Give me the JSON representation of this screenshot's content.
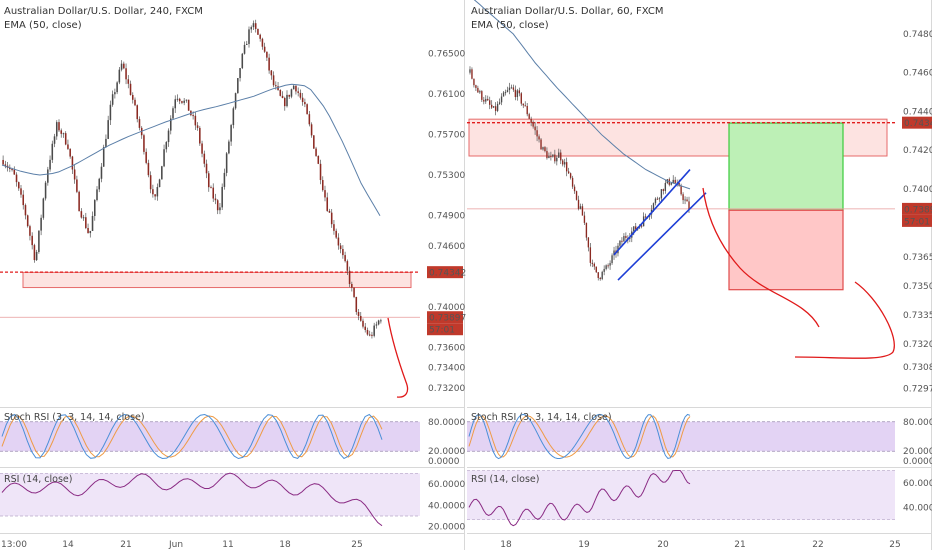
{
  "colors": {
    "up": "#4a4a4a",
    "down": "#8b2a22",
    "wick": "#555555",
    "ema": "#5b7fa8",
    "resistance": "#e11d1d",
    "zone_fill": "#fde3e1",
    "tp_fill": "#bdf0b6",
    "tp_stroke": "#3bcc3b",
    "sl_fill": "#ffc7c7",
    "sl_stroke": "#e04a4a",
    "channel": "#1e3fd6",
    "price_tag": "#c0392b",
    "stoch_k": "#4b8fd8",
    "stoch_d": "#ef9b45",
    "stoch_band": "#e3d3f4",
    "rsi_line": "#8a2b84",
    "rsi_band": "#efe5f8",
    "drawing": "#e01a1a"
  },
  "chart_data": [
    {
      "type": "candlestick",
      "title": "Australian Dollar/U.S. Dollar, 240, FXCM",
      "indicator": "EMA (50, close)",
      "x_tick_labels": [
        "13:00",
        "14",
        "21",
        "Jun",
        "11",
        "18",
        "25"
      ],
      "y_ticks": [
        0.765,
        0.761,
        0.757,
        0.753,
        0.749,
        0.746,
        0.74,
        0.736,
        0.734,
        0.732
      ],
      "y_tick_labels": [
        "0.76500",
        "0.76100",
        "0.75700",
        "0.75300",
        "0.74900",
        "0.74600",
        "0.74000",
        "0.73600",
        "0.73400",
        "0.73200"
      ],
      "ylim": [
        0.7303,
        0.7703
      ],
      "resistance_level": 0.74342,
      "resistance_label": "0.74342",
      "current_price": 0.73897,
      "current_price_label": "0.73897",
      "countdown_label": "57:01",
      "zone": [
        0.7419,
        0.7434
      ],
      "close_path": [
        0.7545,
        0.753,
        0.7495,
        0.7445,
        0.753,
        0.758,
        0.756,
        0.75,
        0.747,
        0.7535,
        0.76,
        0.764,
        0.7605,
        0.756,
        0.75,
        0.756,
        0.761,
        0.76,
        0.7575,
        0.752,
        0.7495,
        0.757,
        0.764,
        0.768,
        0.766,
        0.762,
        0.76,
        0.762,
        0.7595,
        0.755,
        0.75,
        0.7465,
        0.743,
        0.7385,
        0.737,
        0.739
      ],
      "ema_path": [
        0.754,
        0.7534,
        0.753,
        0.7532,
        0.754,
        0.755,
        0.756,
        0.7568,
        0.7575,
        0.7582,
        0.7588,
        0.7594,
        0.7598,
        0.7603,
        0.7608,
        0.7615,
        0.762,
        0.7618,
        0.7595,
        0.756,
        0.752,
        0.749
      ],
      "stoch_rsi": {
        "label": "Stoch RSI (3, 3, 14, 14, close)",
        "ticks": [
          "80.0000",
          "20.0000",
          "0.0000"
        ],
        "ylim": [
          -8,
          108
        ]
      },
      "rsi": {
        "label": "RSI (14, close)",
        "ticks": [
          "60.0000",
          "40.0000",
          "20.0000"
        ],
        "ylim": [
          15,
          75
        ]
      }
    },
    {
      "type": "candlestick",
      "title": "Australian Dollar/U.S. Dollar, 60, FXCM",
      "indicator": "EMA (50, close)",
      "x_tick_labels": [
        "18",
        "19",
        "20",
        "21",
        "22",
        "25"
      ],
      "y_ticks": [
        0.748,
        0.746,
        0.744,
        0.742,
        0.74,
        0.7365,
        0.735,
        0.7335,
        0.732,
        0.7308,
        0.7297
      ],
      "y_tick_labels": [
        "0.74800",
        "0.74600",
        "0.74400",
        "0.74200",
        "0.74000",
        "0.73650",
        "0.73500",
        "0.73350",
        "0.73200",
        "0.73080",
        "0.72970"
      ],
      "ylim": [
        0.72885,
        0.74975
      ],
      "resistance_level": 0.74342,
      "resistance_label": "0.74342",
      "current_price": 0.73897,
      "current_price_label": "0.73897",
      "countdown_label": "57:01",
      "zone": [
        0.7417,
        0.7436
      ],
      "take_profit": [
        0.7389,
        0.7434
      ],
      "stop_loss": [
        0.7348,
        0.7389
      ],
      "close_path": [
        0.746,
        0.745,
        0.7445,
        0.744,
        0.7447,
        0.7452,
        0.7448,
        0.744,
        0.743,
        0.742,
        0.7415,
        0.7418,
        0.741,
        0.7395,
        0.7385,
        0.736,
        0.7355,
        0.736,
        0.7368,
        0.7375,
        0.7378,
        0.7382,
        0.7388,
        0.7395,
        0.7402,
        0.7405,
        0.7398,
        0.739
      ],
      "ema_path": [
        0.75,
        0.749,
        0.748,
        0.7465,
        0.7452,
        0.744,
        0.7428,
        0.7418,
        0.741,
        0.7404,
        0.74
      ],
      "stoch_rsi": {
        "label": "Stoch RSI (3, 3, 14, 14, close)",
        "ticks": [
          "80.0000",
          "20.0000",
          "0.0000"
        ],
        "ylim": [
          -8,
          108
        ]
      },
      "rsi": {
        "label": "RSI (14, close)",
        "ticks": [
          "60.0000",
          "40.0000"
        ],
        "ylim": [
          20,
          72
        ]
      }
    }
  ]
}
